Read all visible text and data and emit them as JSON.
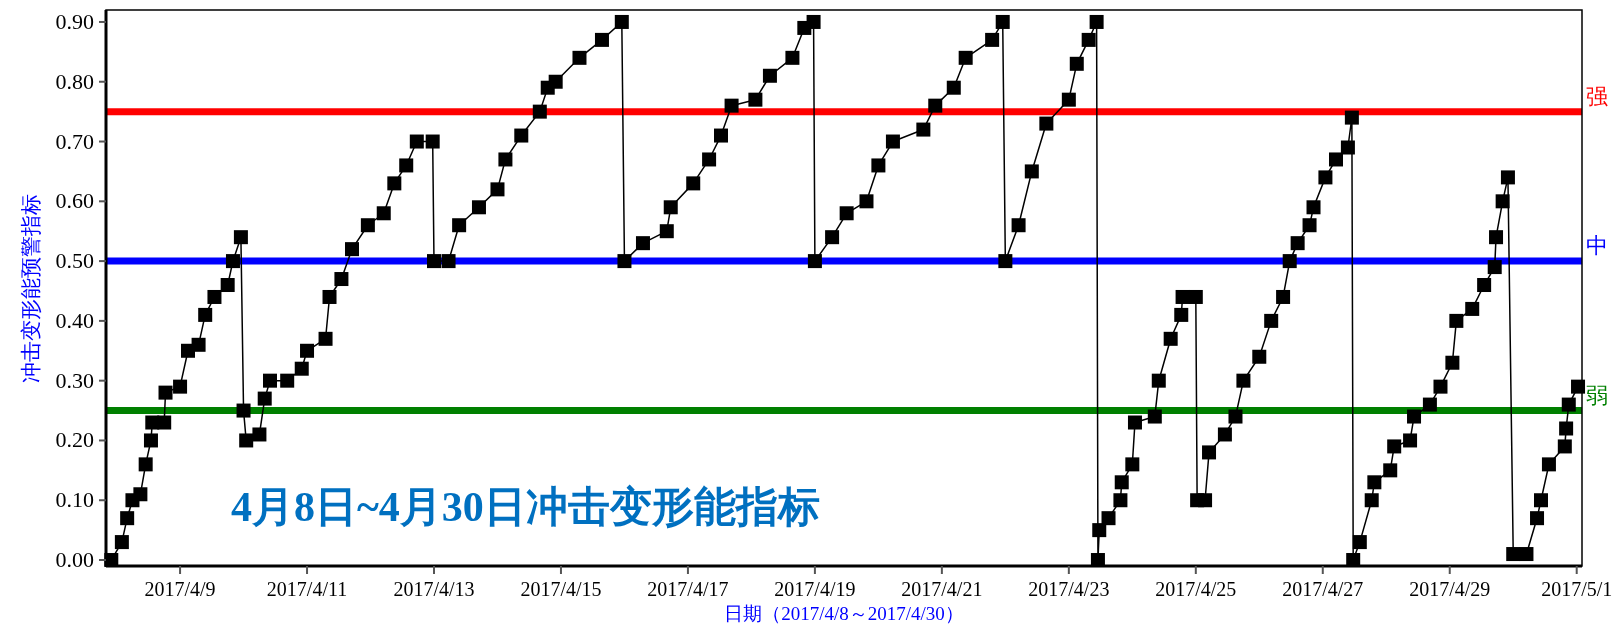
{
  "chart_data": {
    "type": "line",
    "ylabel": "冲击变形能预警指标",
    "xlabel": "日期（2017/4/8～2017/4/30）",
    "annotations": [
      "4月8日~4月30日冲击变形能指标"
    ],
    "xlim": [
      "2017-04-07T20:00",
      "2017-05-01T02:00"
    ],
    "ylim": [
      -0.01,
      0.92
    ],
    "xticks": [
      {
        "value": "2017-04-09",
        "label": "2017/4/9"
      },
      {
        "value": "2017-04-11",
        "label": "2017/4/11"
      },
      {
        "value": "2017-04-13",
        "label": "2017/4/13"
      },
      {
        "value": "2017-04-15",
        "label": "2017/4/15"
      },
      {
        "value": "2017-04-17",
        "label": "2017/4/17"
      },
      {
        "value": "2017-04-19",
        "label": "2017/4/19"
      },
      {
        "value": "2017-04-21",
        "label": "2017/4/21"
      },
      {
        "value": "2017-04-23",
        "label": "2017/4/23"
      },
      {
        "value": "2017-04-25",
        "label": "2017/4/25"
      },
      {
        "value": "2017-04-27",
        "label": "2017/4/27"
      },
      {
        "value": "2017-04-29",
        "label": "2017/4/29"
      },
      {
        "value": "2017-05-01",
        "label": "2017/5/1"
      }
    ],
    "yticks": [
      {
        "value": 0,
        "label": "0.00"
      },
      {
        "value": 0.1,
        "label": "0.10"
      },
      {
        "value": 0.2,
        "label": "0.20"
      },
      {
        "value": 0.3,
        "label": "0.30"
      },
      {
        "value": 0.4,
        "label": "0.40"
      },
      {
        "value": 0.5,
        "label": "0.50"
      },
      {
        "value": 0.6,
        "label": "0.60"
      },
      {
        "value": 0.7,
        "label": "0.70"
      },
      {
        "value": 0.8,
        "label": "0.80"
      },
      {
        "value": 0.9,
        "label": "0.90"
      }
    ],
    "grid": false,
    "marker": "square",
    "line_style": "solid",
    "ref_lines": [
      {
        "axis": "y",
        "value": 0.75,
        "label": "强",
        "color": "#ff0000"
      },
      {
        "axis": "y",
        "value": 0.5,
        "label": "中",
        "color": "#0000ff"
      },
      {
        "axis": "y",
        "value": 0.25,
        "label": "弱",
        "color": "#008000"
      }
    ],
    "series": [
      {
        "color": "#000000",
        "x": [
          "2017-04-07T22:00",
          "2017-04-08T02:00",
          "2017-04-08T04:00",
          "2017-04-08T06:00",
          "2017-04-08T09:00",
          "2017-04-08T11:00",
          "2017-04-08T13:00",
          "2017-04-08T13:30",
          "2017-04-08T18:00",
          "2017-04-08T18:30",
          "2017-04-09T00:00",
          "2017-04-09T03:00",
          "2017-04-09T07:00",
          "2017-04-09T09:30",
          "2017-04-09T13:00",
          "2017-04-09T18:00",
          "2017-04-09T20:00",
          "2017-04-09T23:00",
          "2017-04-10T00:00",
          "2017-04-10T01:00",
          "2017-04-10T06:00",
          "2017-04-10T08:00",
          "2017-04-10T10:00",
          "2017-04-10T16:30",
          "2017-04-10T22:00",
          "2017-04-11T00:00",
          "2017-04-11T07:00",
          "2017-04-11T08:30",
          "2017-04-11T13:00",
          "2017-04-11T17:00",
          "2017-04-11T23:00",
          "2017-04-12T05:00",
          "2017-04-12T09:00",
          "2017-04-12T13:30",
          "2017-04-12T17:30",
          "2017-04-12T23:30",
          "2017-04-13T00:00",
          "2017-04-13T05:30",
          "2017-04-13T09:30",
          "2017-04-13T17:00",
          "2017-04-14T00:00",
          "2017-04-14T03:00",
          "2017-04-14T09:00",
          "2017-04-14T16:00",
          "2017-04-14T19:00",
          "2017-04-14T22:00",
          "2017-04-15T07:00",
          "2017-04-15T15:30",
          "2017-04-15T23:00",
          "2017-04-16T00:00",
          "2017-04-16T07:00",
          "2017-04-16T16:00",
          "2017-04-16T17:30",
          "2017-04-17T02:00",
          "2017-04-17T08:00",
          "2017-04-17T12:30",
          "2017-04-17T16:30",
          "2017-04-18T01:30",
          "2017-04-18T07:00",
          "2017-04-18T15:30",
          "2017-04-18T20:00",
          "2017-04-18T23:30",
          "2017-04-19T00:00",
          "2017-04-19T06:30",
          "2017-04-19T12:00",
          "2017-04-19T19:30",
          "2017-04-20T00:00",
          "2017-04-20T05:30",
          "2017-04-20T17:00",
          "2017-04-20T21:30",
          "2017-04-21T04:30",
          "2017-04-21T09:00",
          "2017-04-21T19:00",
          "2017-04-21T23:00",
          "2017-04-22T00:00",
          "2017-04-22T05:00",
          "2017-04-22T10:00",
          "2017-04-22T15:30",
          "2017-04-23T00:00",
          "2017-04-23T03:00",
          "2017-04-23T07:30",
          "2017-04-23T10:30",
          "2017-04-23T11:00",
          "2017-04-23T11:30",
          "2017-04-23T15:00",
          "2017-04-23T19:30",
          "2017-04-23T20:00",
          "2017-04-24T00:00",
          "2017-04-24T01:00",
          "2017-04-24T08:30",
          "2017-04-24T10:00",
          "2017-04-24T14:30",
          "2017-04-24T18:30",
          "2017-04-24T19:00",
          "2017-04-25T00:00",
          "2017-04-25T00:30",
          "2017-04-25T03:30",
          "2017-04-25T05:00",
          "2017-04-25T11:00",
          "2017-04-25T15:00",
          "2017-04-25T18:00",
          "2017-04-26T00:00",
          "2017-04-26T04:30",
          "2017-04-26T09:00",
          "2017-04-26T11:30",
          "2017-04-26T14:30",
          "2017-04-26T19:00",
          "2017-04-26T20:30",
          "2017-04-27T01:00",
          "2017-04-27T05:00",
          "2017-04-27T09:30",
          "2017-04-27T11:00",
          "2017-04-27T11:30",
          "2017-04-27T14:00",
          "2017-04-27T18:30",
          "2017-04-27T19:30",
          "2017-04-28T01:30",
          "2017-04-28T03:00",
          "2017-04-28T09:00",
          "2017-04-28T10:30",
          "2017-04-28T16:30",
          "2017-04-28T20:30",
          "2017-04-29T01:00",
          "2017-04-29T02:30",
          "2017-04-29T08:30",
          "2017-04-29T13:00",
          "2017-04-29T17:00",
          "2017-04-29T17:30",
          "2017-04-29T20:00",
          "2017-04-29T22:00",
          "2017-04-30T00:00",
          "2017-04-30T05:00",
          "2017-04-30T09:00",
          "2017-04-30T10:30",
          "2017-04-30T13:30",
          "2017-04-30T19:30",
          "2017-04-30T20:00",
          "2017-04-30T21:00",
          "2017-05-01T00:30"
        ],
        "values": [
          0.0,
          0.03,
          0.07,
          0.1,
          0.11,
          0.16,
          0.2,
          0.23,
          0.23,
          0.28,
          0.29,
          0.35,
          0.36,
          0.41,
          0.44,
          0.46,
          0.5,
          0.54,
          0.25,
          0.2,
          0.21,
          0.27,
          0.3,
          0.3,
          0.32,
          0.35,
          0.37,
          0.44,
          0.47,
          0.52,
          0.56,
          0.58,
          0.63,
          0.66,
          0.7,
          0.7,
          0.5,
          0.5,
          0.56,
          0.59,
          0.62,
          0.67,
          0.71,
          0.75,
          0.79,
          0.8,
          0.84,
          0.87,
          0.9,
          0.5,
          0.53,
          0.55,
          0.59,
          0.63,
          0.67,
          0.71,
          0.76,
          0.77,
          0.81,
          0.84,
          0.89,
          0.9,
          0.5,
          0.54,
          0.58,
          0.6,
          0.66,
          0.7,
          0.72,
          0.76,
          0.79,
          0.84,
          0.87,
          0.9,
          0.5,
          0.56,
          0.65,
          0.73,
          0.77,
          0.83,
          0.87,
          0.9,
          0.0,
          0.05,
          0.07,
          0.1,
          0.13,
          0.16,
          0.23,
          0.24,
          0.3,
          0.37,
          0.41,
          0.44,
          0.44,
          0.1,
          0.1,
          0.18,
          0.21,
          0.24,
          0.3,
          0.34,
          0.4,
          0.44,
          0.5,
          0.53,
          0.56,
          0.59,
          0.64,
          0.67,
          0.69,
          0.74,
          0.0,
          0.03,
          0.1,
          0.13,
          0.15,
          0.19,
          0.2,
          0.24,
          0.26,
          0.29,
          0.33,
          0.4,
          0.42,
          0.46,
          0.49,
          0.54,
          0.6,
          0.64,
          0.01,
          0.01,
          0.07,
          0.1,
          0.16,
          0.19,
          0.22,
          0.26,
          0.29
        ]
      }
    ]
  }
}
